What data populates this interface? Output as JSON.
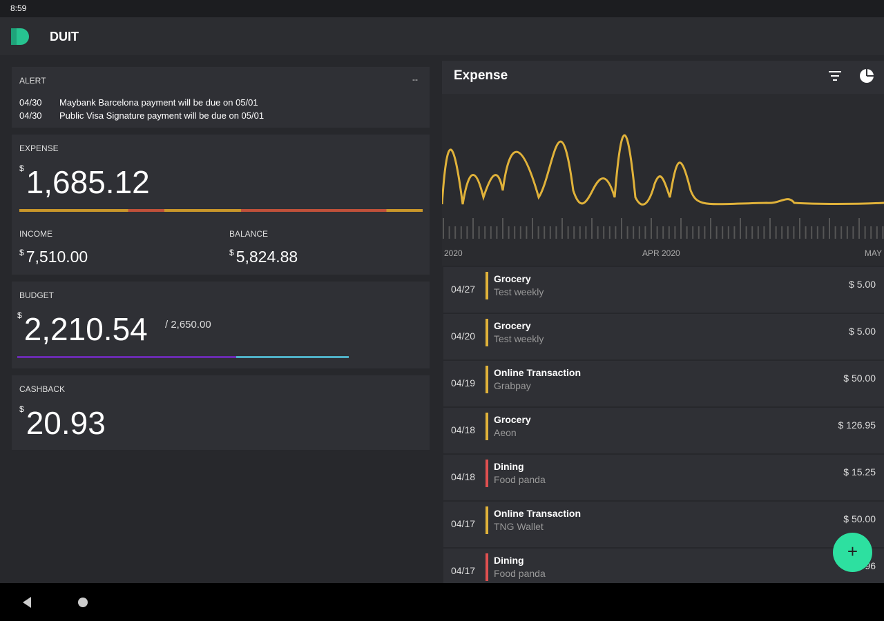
{
  "status_bar": {
    "time": "8:59"
  },
  "app_bar": {
    "title": "DUIT"
  },
  "alert": {
    "title": "ALERT",
    "menu": "--",
    "items": [
      {
        "date": "04/30",
        "text": "Maybank Barcelona payment will be due on 05/01"
      },
      {
        "date": "04/30",
        "text": "Public Visa Signature payment will be due on 05/01"
      }
    ]
  },
  "expense": {
    "label": "EXPENSE",
    "currency": "$",
    "amount": "1,685.12"
  },
  "income": {
    "label": "INCOME",
    "currency": "$",
    "amount": "7,510.00"
  },
  "balance": {
    "label": "BALANCE",
    "currency": "$",
    "amount": "5,824.88"
  },
  "budget": {
    "label": "BUDGET",
    "currency": "$",
    "amount": "2,210.54",
    "limit": "/ 2,650.00"
  },
  "cashback": {
    "label": "CASHBACK",
    "currency": "$",
    "amount": "20.93"
  },
  "chart_panel": {
    "title": "Expense",
    "axis_labels": [
      "2020",
      "APR 2020",
      "MAY"
    ]
  },
  "transactions": [
    {
      "date": "04/27",
      "category": "Grocery",
      "note": "Test weekly",
      "amount": "$ 5.00",
      "color": "#e0b23a"
    },
    {
      "date": "04/20",
      "category": "Grocery",
      "note": "Test weekly",
      "amount": "$ 5.00",
      "color": "#e0b23a"
    },
    {
      "date": "04/19",
      "category": "Online Transaction",
      "note": "Grabpay",
      "amount": "$ 50.00",
      "color": "#e0b23a"
    },
    {
      "date": "04/18",
      "category": "Grocery",
      "note": "Aeon",
      "amount": "$ 126.95",
      "color": "#e0b23a"
    },
    {
      "date": "04/18",
      "category": "Dining",
      "note": "Food panda",
      "amount": "$ 15.25",
      "color": "#e05050"
    },
    {
      "date": "04/17",
      "category": "Online Transaction",
      "note": "TNG Wallet",
      "amount": "$ 50.00",
      "color": "#e0b23a"
    },
    {
      "date": "04/17",
      "category": "Dining",
      "note": "Food panda",
      "amount": "96",
      "color": "#e05050"
    }
  ]
}
